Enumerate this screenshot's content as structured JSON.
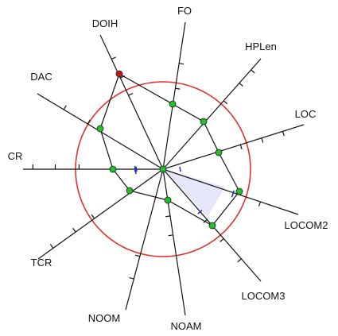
{
  "diagram": {
    "type": "radar-metrics",
    "axes": [
      {
        "name": "FO"
      },
      {
        "name": "HPLen"
      },
      {
        "name": "LOC"
      },
      {
        "name": "LOCOM2"
      },
      {
        "name": "LOCOM3"
      },
      {
        "name": "NOAM"
      },
      {
        "name": "NOOM"
      },
      {
        "name": "TCR"
      },
      {
        "name": "CR"
      },
      {
        "name": "DAC"
      },
      {
        "name": "DOIH"
      }
    ],
    "reference_circle": {
      "color": "#e03030"
    },
    "colors": {
      "axis": "#111111",
      "polygon": "#111111",
      "point_normal": "#22c022",
      "point_outlier": "#c01818",
      "threshold_tick": "#2233cc",
      "highlight_fill": "#e6e6fb"
    },
    "point_states": [
      "normal",
      "normal",
      "normal",
      "normal",
      "normal",
      "normal",
      "normal",
      "normal",
      "normal",
      "normal",
      "outlier"
    ]
  }
}
